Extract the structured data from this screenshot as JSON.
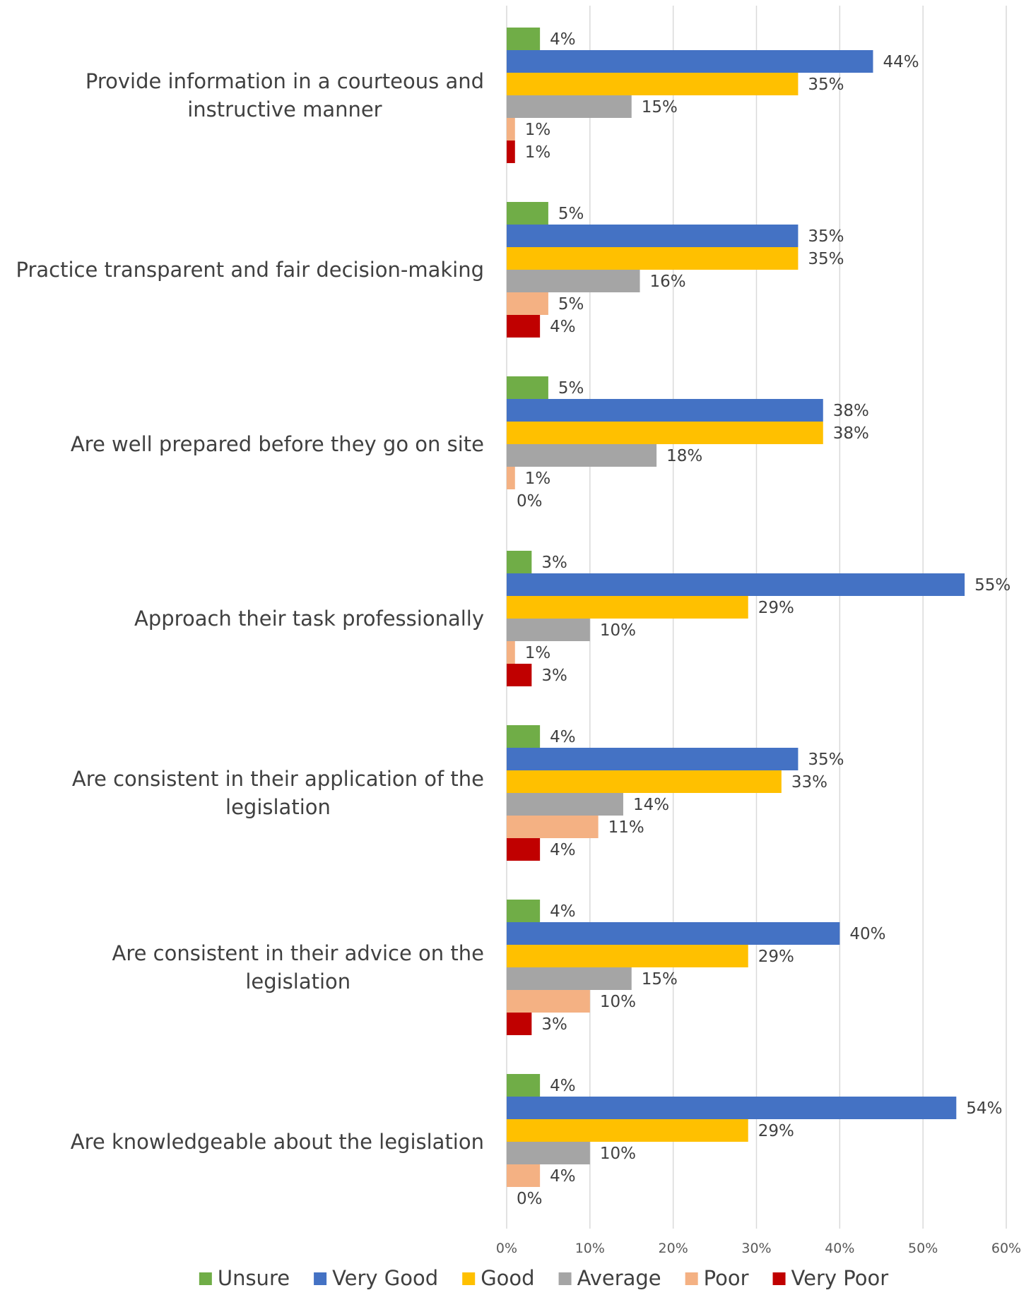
{
  "chart_data": {
    "type": "bar",
    "orientation": "horizontal",
    "categories": [
      "Provide information in a courteous and instructive manner",
      "Practice transparent and fair decision-making",
      "Are well prepared before they go on site",
      "Approach their task professionally",
      "Are consistent in their application of the legislation",
      "Are consistent in their advice on the legislation",
      "Are knowledgeable about the legislation"
    ],
    "series": [
      {
        "name": "Unsure",
        "color": "#70ad47",
        "values": [
          4,
          5,
          5,
          3,
          4,
          4,
          4
        ]
      },
      {
        "name": "Very Good",
        "color": "#4472c4",
        "values": [
          44,
          35,
          38,
          55,
          35,
          40,
          54
        ]
      },
      {
        "name": "Good",
        "color": "#ffc000",
        "values": [
          35,
          35,
          38,
          29,
          33,
          29,
          29
        ]
      },
      {
        "name": "Average",
        "color": "#a5a5a5",
        "values": [
          15,
          16,
          18,
          10,
          14,
          15,
          10
        ]
      },
      {
        "name": "Poor",
        "color": "#f4b183",
        "values": [
          1,
          5,
          1,
          1,
          11,
          10,
          4
        ]
      },
      {
        "name": "Very Poor",
        "color": "#c00000",
        "values": [
          1,
          4,
          0,
          3,
          4,
          3,
          0
        ]
      }
    ],
    "xlim": [
      0,
      60
    ],
    "xticks": [
      0,
      10,
      20,
      30,
      40,
      50,
      60
    ],
    "tick_suffix": "%",
    "value_suffix": "%",
    "grid": true,
    "legend_position": "bottom"
  }
}
